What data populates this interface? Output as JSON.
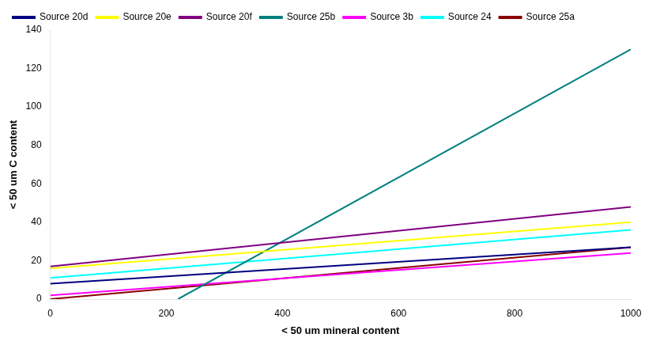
{
  "chart_data": {
    "type": "line",
    "xlabel": "< 50 um mineral content",
    "ylabel": "< 50 um C content",
    "xlim": [
      0,
      1000
    ],
    "ylim": [
      0,
      140
    ],
    "xticks": [
      0,
      200,
      400,
      600,
      800,
      1000
    ],
    "yticks": [
      0,
      20,
      40,
      60,
      80,
      100,
      120,
      140
    ],
    "grid": false,
    "legend": "upper left",
    "series": [
      {
        "name": "Source 20d",
        "color": "#000080",
        "x": [
          0,
          1000
        ],
        "values": [
          8.0,
          27.0
        ]
      },
      {
        "name": "Source 20e",
        "color": "#FFFF00",
        "x": [
          0,
          1000
        ],
        "values": [
          16.0,
          40.0
        ]
      },
      {
        "name": "Source 20f",
        "color": "#800080",
        "x": [
          0,
          1000
        ],
        "values": [
          17.0,
          48.0
        ]
      },
      {
        "name": "Source 25b",
        "color": "#008080",
        "x": [
          220,
          1000
        ],
        "values": [
          0.0,
          130.0
        ]
      },
      {
        "name": "Source 3b",
        "color": "#FF00FF",
        "x": [
          0,
          1000
        ],
        "values": [
          2.0,
          24.0
        ]
      },
      {
        "name": "Source 24",
        "color": "#00FFFF",
        "x": [
          0,
          1000
        ],
        "values": [
          11.0,
          36.0
        ]
      },
      {
        "name": "Source 25a",
        "color": "#8B0000",
        "x": [
          0,
          1000
        ],
        "values": [
          0.0,
          27.0
        ]
      }
    ]
  }
}
